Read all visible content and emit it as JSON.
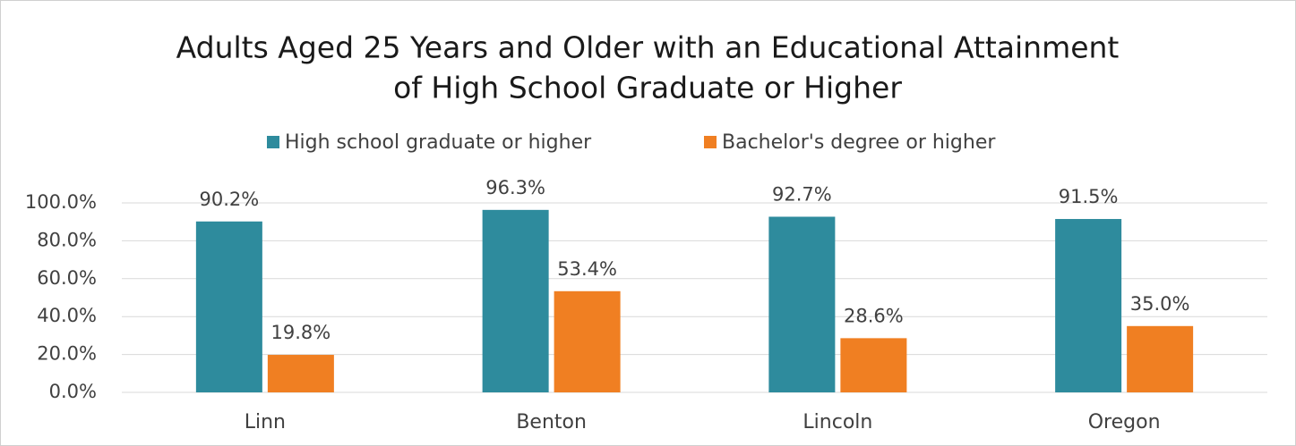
{
  "chart_data": {
    "type": "bar",
    "title": [
      "Adults Aged 25 Years and Older with an Educational Attainment",
      "of High School Graduate or Higher"
    ],
    "categories": [
      "Linn",
      "Benton",
      "Lincoln",
      "Oregon"
    ],
    "series": [
      {
        "name": "High school graduate or higher",
        "color": "#2e8b9d",
        "values": [
          90.2,
          96.3,
          92.7,
          91.5
        ],
        "value_labels": [
          "90.2%",
          "96.3%",
          "92.7%",
          "91.5%"
        ]
      },
      {
        "name": "Bachelor's degree or higher",
        "color": "#f07f22",
        "values": [
          19.8,
          53.4,
          28.6,
          35.0
        ],
        "value_labels": [
          "19.8%",
          "53.4%",
          "28.6%",
          "35.0%"
        ]
      }
    ],
    "ylim": [
      0,
      100
    ],
    "yticks": [
      {
        "value": 0,
        "label": "0.0%"
      },
      {
        "value": 20,
        "label": "20.0%"
      },
      {
        "value": 40,
        "label": "40.0%"
      },
      {
        "value": 60,
        "label": "60.0%"
      },
      {
        "value": 80,
        "label": "80.0%"
      },
      {
        "value": 100,
        "label": "100.0%"
      }
    ],
    "grid": true,
    "legend": "top"
  }
}
